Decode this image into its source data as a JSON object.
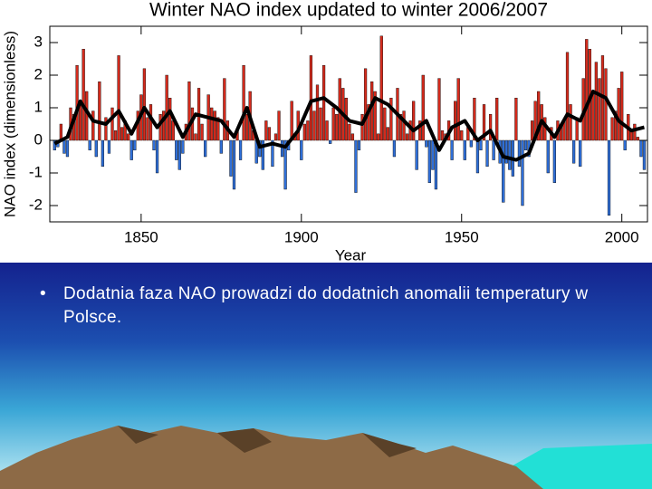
{
  "chart_data": {
    "type": "bar",
    "title": "Winter NAO index updated to winter 2006/2007",
    "ylabel": "NAO index  (dimensionless)",
    "xlabel": "Year",
    "x": [
      1823,
      1824,
      1825,
      1826,
      1827,
      1828,
      1829,
      1830,
      1831,
      1832,
      1833,
      1834,
      1835,
      1836,
      1837,
      1838,
      1839,
      1840,
      1841,
      1842,
      1843,
      1844,
      1845,
      1846,
      1847,
      1848,
      1849,
      1850,
      1851,
      1852,
      1853,
      1854,
      1855,
      1856,
      1857,
      1858,
      1859,
      1860,
      1861,
      1862,
      1863,
      1864,
      1865,
      1866,
      1867,
      1868,
      1869,
      1870,
      1871,
      1872,
      1873,
      1874,
      1875,
      1876,
      1877,
      1878,
      1879,
      1880,
      1881,
      1882,
      1883,
      1884,
      1885,
      1886,
      1887,
      1888,
      1889,
      1890,
      1891,
      1892,
      1893,
      1894,
      1895,
      1896,
      1897,
      1898,
      1899,
      1900,
      1901,
      1902,
      1903,
      1904,
      1905,
      1906,
      1907,
      1908,
      1909,
      1910,
      1911,
      1912,
      1913,
      1914,
      1915,
      1916,
      1917,
      1918,
      1919,
      1920,
      1921,
      1922,
      1923,
      1924,
      1925,
      1926,
      1927,
      1928,
      1929,
      1930,
      1931,
      1932,
      1933,
      1934,
      1935,
      1936,
      1937,
      1938,
      1939,
      1940,
      1941,
      1942,
      1943,
      1944,
      1945,
      1946,
      1947,
      1948,
      1949,
      1950,
      1951,
      1952,
      1953,
      1954,
      1955,
      1956,
      1957,
      1958,
      1959,
      1960,
      1961,
      1962,
      1963,
      1964,
      1965,
      1966,
      1967,
      1968,
      1969,
      1970,
      1971,
      1972,
      1973,
      1974,
      1975,
      1976,
      1977,
      1978,
      1979,
      1980,
      1981,
      1982,
      1983,
      1984,
      1985,
      1986,
      1987,
      1988,
      1989,
      1990,
      1991,
      1992,
      1993,
      1994,
      1995,
      1996,
      1997,
      1998,
      1999,
      2000,
      2001,
      2002,
      2003,
      2004,
      2005,
      2006,
      2007
    ],
    "values": [
      -0.3,
      -0.2,
      0.5,
      -0.4,
      -0.5,
      1.0,
      0.8,
      2.3,
      1.2,
      2.8,
      1.5,
      -0.3,
      0.9,
      -0.5,
      1.8,
      -0.8,
      0.7,
      -0.4,
      1.0,
      0.3,
      2.6,
      0.4,
      0.6,
      0.2,
      -0.6,
      -0.3,
      0.9,
      1.4,
      2.2,
      0.7,
      1.1,
      -0.3,
      -1.0,
      0.8,
      0.9,
      2.0,
      1.3,
      0.6,
      -0.6,
      -0.9,
      -0.4,
      0.5,
      1.8,
      1.0,
      0.2,
      1.6,
      0.5,
      -0.5,
      1.4,
      1.0,
      0.9,
      0.7,
      -0.4,
      1.9,
      0.6,
      -1.1,
      -1.5,
      0.3,
      -0.6,
      2.3,
      0.8,
      1.5,
      0.3,
      -0.7,
      -0.5,
      -0.9,
      0.6,
      0.4,
      -0.8,
      0.2,
      0.9,
      -0.5,
      -1.5,
      -0.3,
      1.2,
      0.2,
      0.9,
      -0.6,
      0.5,
      0.6,
      2.6,
      0.9,
      1.7,
      1.0,
      2.3,
      0.6,
      -0.1,
      1.0,
      0.8,
      1.9,
      1.6,
      1.3,
      0.5,
      0.2,
      -1.6,
      -0.3,
      0.8,
      2.2,
      1.1,
      1.8,
      1.5,
      0.2,
      3.2,
      1.0,
      0.4,
      1.3,
      -0.5,
      1.6,
      0.8,
      0.9,
      0.2,
      0.6,
      1.2,
      -0.9,
      0.6,
      2.0,
      -0.2,
      -1.3,
      -0.9,
      -1.5,
      1.9,
      0.3,
      0.2,
      0.6,
      -0.6,
      1.2,
      1.9,
      0.3,
      -0.6,
      0.4,
      -0.2,
      1.3,
      -1.0,
      -0.3,
      1.1,
      -0.8,
      0.8,
      -0.6,
      1.3,
      -0.7,
      -1.9,
      -0.7,
      -0.9,
      -1.1,
      1.3,
      -0.8,
      -2.0,
      -0.3,
      -0.5,
      0.6,
      1.2,
      1.5,
      1.1,
      0.7,
      -1.0,
      0.4,
      -1.3,
      0.6,
      0.5,
      0.6,
      2.7,
      1.1,
      -0.7,
      0.7,
      -0.8,
      1.9,
      3.1,
      2.8,
      1.5,
      2.4,
      1.9,
      2.6,
      2.2,
      -2.3,
      0.7,
      0.9,
      1.6,
      2.1,
      -0.3,
      0.8,
      0.3,
      0.5,
      0.1,
      -0.5,
      -0.9
    ],
    "positive_color": "#d42a1c",
    "negative_color": "#2f6fd8",
    "trend": {
      "color": "#000000",
      "x": [
        1823,
        1827,
        1831,
        1835,
        1839,
        1843,
        1847,
        1851,
        1855,
        1859,
        1863,
        1867,
        1871,
        1875,
        1879,
        1883,
        1887,
        1891,
        1895,
        1899,
        1903,
        1907,
        1911,
        1915,
        1919,
        1923,
        1927,
        1931,
        1935,
        1939,
        1943,
        1947,
        1951,
        1955,
        1959,
        1963,
        1967,
        1971,
        1975,
        1979,
        1983,
        1987,
        1991,
        1995,
        1999,
        2003,
        2007
      ],
      "values": [
        -0.1,
        0.1,
        1.2,
        0.6,
        0.5,
        0.9,
        0.2,
        1.0,
        0.4,
        0.9,
        0.1,
        0.8,
        0.7,
        0.6,
        0.1,
        1.0,
        -0.2,
        -0.1,
        -0.2,
        0.3,
        1.2,
        1.3,
        1.0,
        0.6,
        0.5,
        1.3,
        1.1,
        0.7,
        0.3,
        0.6,
        -0.3,
        0.4,
        0.6,
        0.0,
        0.3,
        -0.5,
        -0.6,
        -0.4,
        0.6,
        0.1,
        0.8,
        0.6,
        1.5,
        1.3,
        0.6,
        0.3,
        0.4
      ]
    },
    "xlim": [
      1821.5,
      2008
    ],
    "ylim": [
      -2.5,
      3.5
    ],
    "xticks": [
      1850,
      1900,
      1950,
      2000
    ],
    "yticks": [
      -2,
      -1,
      0,
      1,
      2,
      3
    ]
  },
  "slide": {
    "bullet": "Dodatnia faza NAO prowadzi do dodatnich anomalii temperatury w Polsce."
  }
}
